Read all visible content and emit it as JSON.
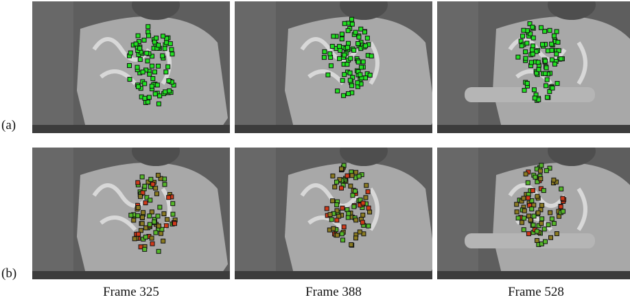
{
  "rows": [
    {
      "label": "(a)"
    },
    {
      "label": "(b)"
    }
  ],
  "columns": [
    {
      "caption": "Frame 325"
    },
    {
      "caption": "Frame 388"
    },
    {
      "caption": "Frame 528"
    }
  ]
}
